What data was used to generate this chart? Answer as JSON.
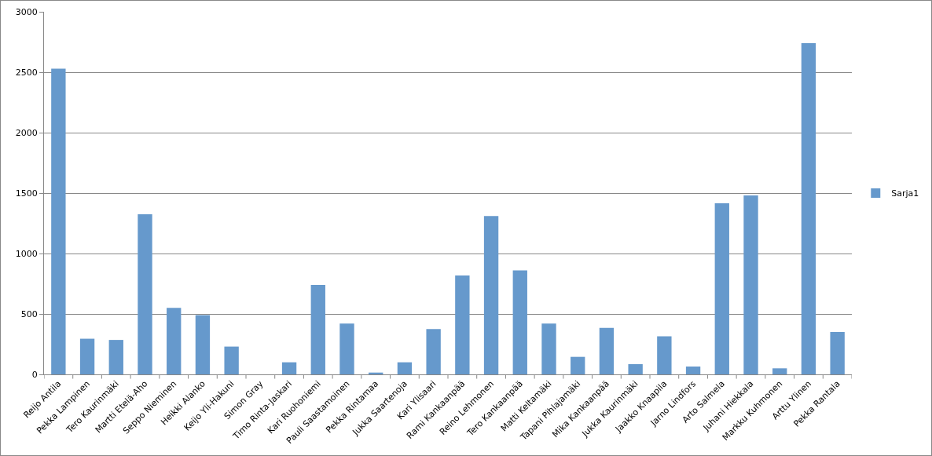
{
  "chart_data": {
    "type": "bar",
    "categories": [
      "Reijo Antila",
      "Pekka Lampinen",
      "Tero Kaurinmäki",
      "Martti Etelä-Aho",
      "Seppo Nieminen",
      "Heikki Alanko",
      "Keijo Yli-Hakuni",
      "Simon Gray",
      "Timo Rinta-Jaskari",
      "Kari Ruohoniemi",
      "Pauli Saastamoinen",
      "Pekka Rintamaa",
      "Jukka Saartenoja",
      "Kari Ylisaari",
      "Rami Kankaanpää",
      "Reino Lehmonen",
      "Tero Kankaanpää",
      "Matti Keltamäki",
      "Tapani Pihlajamäki",
      "Mika Kankaanpää",
      "Jukka Kaurinmäki",
      "Jaakko Knaapila",
      "Jarno Lindfors",
      "Arto Salmela",
      "Juhani Hiekkala",
      "Markku Kuhmonen",
      "Arttu Ylinen",
      "Pekka Rantala"
    ],
    "series": [
      {
        "name": "Sarja1",
        "color": "#6699cc",
        "values": [
          2530,
          295,
          285,
          1325,
          550,
          490,
          230,
          0,
          100,
          740,
          420,
          15,
          100,
          375,
          818,
          1310,
          860,
          420,
          145,
          385,
          85,
          315,
          65,
          1415,
          1480,
          50,
          2740,
          350
        ]
      }
    ],
    "ylim": [
      0,
      3000
    ],
    "yticks": [
      0,
      500,
      1000,
      1500,
      2000,
      2500,
      3000
    ],
    "grid": "y",
    "legend": "right"
  }
}
